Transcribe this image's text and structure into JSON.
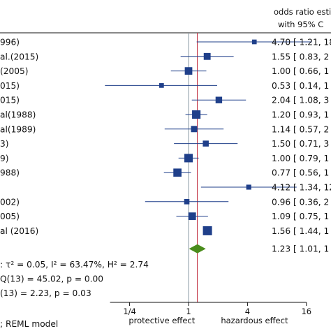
{
  "header": {
    "line1": "odds ratio estim",
    "line2": "with 95% C"
  },
  "chart_data": {
    "type": "forest",
    "x_scale": "log2",
    "xlim": [
      0.11,
      22
    ],
    "xticks": [
      {
        "value": 0.25,
        "label": "1/4"
      },
      {
        "value": 1,
        "label": "1"
      },
      {
        "value": 4,
        "label": "4"
      },
      {
        "value": 16,
        "label": "16"
      }
    ],
    "xaxis_left_label": "protective effect",
    "xaxis_right_label": "hazardous effect",
    "reference_line": 1,
    "overall_line": 1.23,
    "colors": {
      "point": "#1f3f8a",
      "ci": "#1f3f8a",
      "diamond": "#4a8c1c",
      "null_line": "#8a9aa6",
      "overall_line": "#c0283a"
    },
    "studies": [
      {
        "label": "996)",
        "or": 4.7,
        "lo": 1.21,
        "hi": 18.2,
        "weight": 0.3,
        "ci_text": "4.70 [ 1.21,  18"
      },
      {
        "label": "al.(2015)",
        "or": 1.55,
        "lo": 0.83,
        "hi": 2.89,
        "weight": 0.65,
        "ci_text": "1.55 [ 0.83,   2"
      },
      {
        "label": "(2005)",
        "or": 1.0,
        "lo": 0.66,
        "hi": 1.52,
        "weight": 0.75,
        "ci_text": "1.00 [ 0.66,   1"
      },
      {
        "label": "015)",
        "or": 0.53,
        "lo": 0.14,
        "hi": 1.96,
        "weight": 0.3,
        "ci_text": "0.53 [ 0.14,   1"
      },
      {
        "label": "015)",
        "or": 2.04,
        "lo": 1.08,
        "hi": 3.86,
        "weight": 0.6,
        "ci_text": "2.04 [ 1.08,   3"
      },
      {
        "label": "al(1988)",
        "or": 1.2,
        "lo": 0.93,
        "hi": 1.55,
        "weight": 0.9,
        "ci_text": "1.20 [ 0.93,   1"
      },
      {
        "label": "al(1989)",
        "or": 1.14,
        "lo": 0.57,
        "hi": 2.28,
        "weight": 0.55,
        "ci_text": "1.14 [ 0.57,   2"
      },
      {
        "label": "3)",
        "or": 1.5,
        "lo": 0.71,
        "hi": 3.17,
        "weight": 0.5,
        "ci_text": "1.50 [ 0.71,   3"
      },
      {
        "label": "9)",
        "or": 1.0,
        "lo": 0.79,
        "hi": 1.27,
        "weight": 0.9,
        "ci_text": "1.00 [ 0.79,   1"
      },
      {
        "label": "988)",
        "or": 0.77,
        "lo": 0.56,
        "hi": 1.06,
        "weight": 0.85,
        "ci_text": "0.77 [ 0.56,   1"
      },
      {
        "label": "",
        "or": 4.12,
        "lo": 1.34,
        "hi": 12.7,
        "weight": 0.35,
        "ci_text": "4.12 [ 1.34,  12"
      },
      {
        "label": "002)",
        "or": 0.96,
        "lo": 0.36,
        "hi": 2.56,
        "weight": 0.4,
        "ci_text": "0.96 [ 0.36,   2"
      },
      {
        "label": "005)",
        "or": 1.09,
        "lo": 0.75,
        "hi": 1.58,
        "weight": 0.75,
        "ci_text": "1.09 [ 0.75,   1"
      },
      {
        "label": "al (2016)",
        "or": 1.56,
        "lo": 1.44,
        "hi": 1.69,
        "weight": 1.0,
        "ci_text": "1.56 [ 1.44,   1"
      }
    ],
    "overall": {
      "or": 1.23,
      "lo": 1.01,
      "hi": 1.5,
      "ci_text": "1.23 [ 1.01,   1"
    },
    "stats_lines": [
      ": τ² = 0.05, I² = 63.47%, H² = 2.74",
      "Q(13) = 45.02, p = 0.00",
      "(13) = 2.23, p = 0.03"
    ],
    "footer": "; REML model"
  }
}
